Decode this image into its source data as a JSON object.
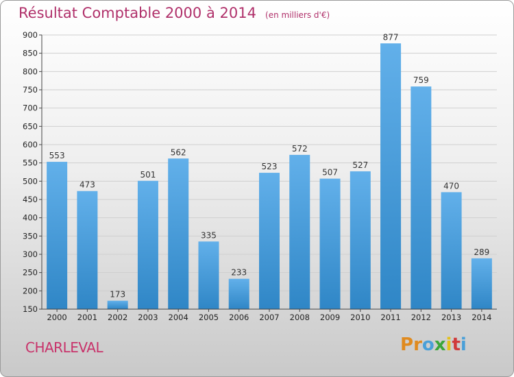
{
  "header": {
    "title": "Résultat Comptable 2000 à 2014",
    "subtitle": "(en milliers d'€)"
  },
  "footer": {
    "commune": "CHARLEVAL",
    "brand": "Proxiti",
    "brand_letters": [
      "P",
      "r",
      "o",
      "x",
      "i",
      "t",
      "i"
    ],
    "brand_colors": [
      "#e08a1e",
      "#e08a1e",
      "#4aa0d8",
      "#3aa63a",
      "#e3c11a",
      "#d03a3a",
      "#4aa0d8"
    ]
  },
  "chart_data": {
    "type": "bar",
    "title": "Résultat Comptable 2000 à 2014",
    "subtitle": "(en milliers d'€)",
    "xlabel": "",
    "ylabel": "",
    "categories": [
      "2000",
      "2001",
      "2002",
      "2003",
      "2004",
      "2005",
      "2006",
      "2007",
      "2008",
      "2009",
      "2010",
      "2011",
      "2012",
      "2013",
      "2014"
    ],
    "values": [
      553,
      473,
      173,
      501,
      562,
      335,
      233,
      523,
      572,
      507,
      527,
      877,
      759,
      470,
      289
    ],
    "ylim": [
      150,
      900
    ],
    "yticks": [
      150,
      200,
      250,
      300,
      350,
      400,
      450,
      500,
      550,
      600,
      650,
      700,
      750,
      800,
      850,
      900
    ],
    "grid": true,
    "legend": "none",
    "colors": {
      "bar_top": "#62b0ea",
      "bar_bottom": "#2f86c6",
      "grid": "#cfcfcf",
      "axis": "#444444"
    }
  }
}
